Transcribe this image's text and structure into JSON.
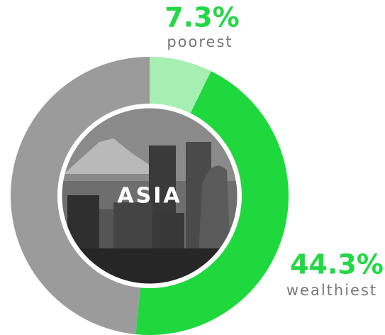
{
  "chart_data": {
    "type": "donut",
    "center_label": "ASIA",
    "categories": [
      "poorest",
      "wealthiest",
      null
    ],
    "values": [
      7.3,
      44.3,
      48.4
    ],
    "value_labels": [
      "7.3%",
      "44.3%",
      null
    ],
    "colors": [
      "#a4efb1",
      "#1ed83e",
      "#9b9b9b"
    ],
    "label_color": "#22d844"
  }
}
